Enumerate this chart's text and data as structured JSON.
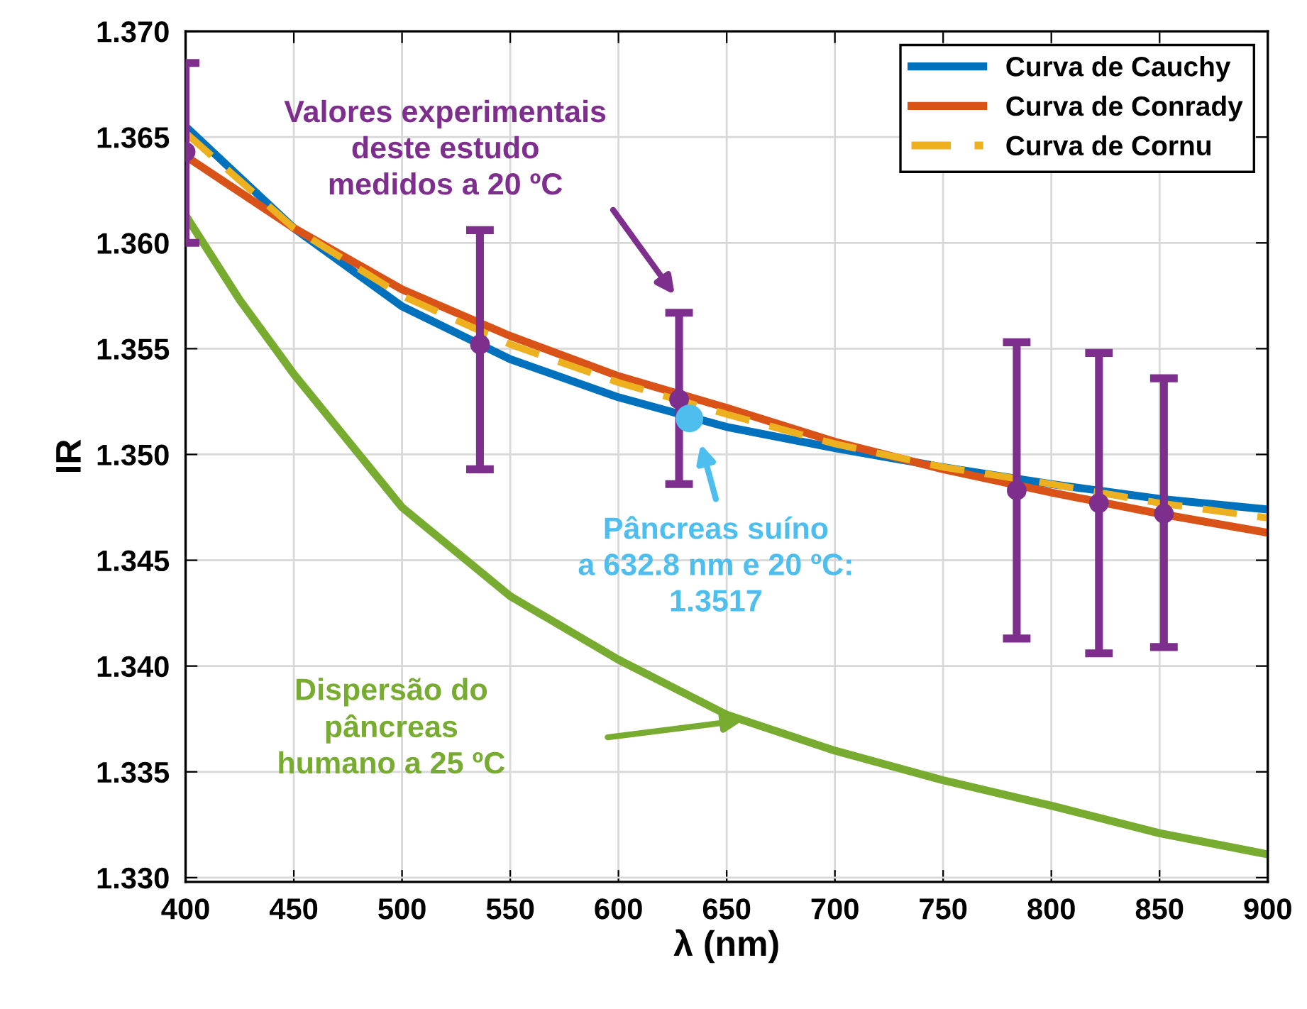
{
  "chart_data": {
    "type": "line",
    "xlabel": "λ (nm)",
    "ylabel": "IR",
    "xlim": [
      400,
      900
    ],
    "ylim": [
      1.3298,
      1.37
    ],
    "xticks": [
      400,
      450,
      500,
      550,
      600,
      650,
      700,
      750,
      800,
      850,
      900
    ],
    "yticks": [
      {
        "value": 1.33,
        "label": "1.330"
      },
      {
        "value": 1.335,
        "label": "1.335"
      },
      {
        "value": 1.34,
        "label": "1.340"
      },
      {
        "value": 1.345,
        "label": "1.345"
      },
      {
        "value": 1.35,
        "label": "1.350"
      },
      {
        "value": 1.355,
        "label": "1.355"
      },
      {
        "value": 1.36,
        "label": "1.360"
      },
      {
        "value": 1.365,
        "label": "1.365"
      },
      {
        "value": 1.37,
        "label": "1.370"
      }
    ],
    "grid": true,
    "legend": "top right",
    "series": [
      {
        "name": "Curva de Cauchy",
        "color": "#0072bd",
        "line_style": "solid",
        "x": [
          400,
          450,
          500,
          550,
          600,
          650,
          700,
          750,
          800,
          850,
          900
        ],
        "values": [
          1.3655,
          1.3607,
          1.357,
          1.3545,
          1.3527,
          1.3513,
          1.3503,
          1.3494,
          1.3486,
          1.3479,
          1.3474
        ]
      },
      {
        "name": "Curva de Conrady",
        "color": "#d95319",
        "line_style": "solid",
        "x": [
          400,
          450,
          500,
          550,
          600,
          650,
          700,
          750,
          800,
          850,
          900
        ],
        "values": [
          1.3641,
          1.3607,
          1.3578,
          1.3556,
          1.3537,
          1.3522,
          1.3506,
          1.3493,
          1.3482,
          1.3472,
          1.3463
        ]
      },
      {
        "name": "Curva de Cornu",
        "color": "#edb120",
        "line_style": "dashed",
        "x": [
          400,
          450,
          500,
          550,
          600,
          650,
          700,
          750,
          800,
          850,
          900
        ],
        "values": [
          1.3652,
          1.3607,
          1.3575,
          1.3552,
          1.3534,
          1.3519,
          1.3505,
          1.3494,
          1.3486,
          1.3477,
          1.347
        ]
      },
      {
        "color": "#77ac30",
        "line_style": "solid",
        "x": [
          400,
          425,
          450,
          500,
          550,
          600,
          650,
          700,
          750,
          800,
          850,
          900
        ],
        "values": [
          1.3613,
          1.3573,
          1.3538,
          1.3475,
          1.3433,
          1.3403,
          1.3377,
          1.336,
          1.3346,
          1.3334,
          1.3321,
          1.3311
        ]
      },
      {
        "type": "scatter",
        "color": "#7e2f8e",
        "marker": "circle",
        "x": [
          400,
          536,
          628,
          784,
          822,
          852
        ],
        "values": [
          1.3643,
          1.3552,
          1.3526,
          1.3483,
          1.3477,
          1.3472
        ],
        "errors": [
          [
            1.36,
            1.3685
          ],
          [
            1.3493,
            1.3606
          ],
          [
            1.3486,
            1.3567
          ],
          [
            1.3413,
            1.3553
          ],
          [
            1.3406,
            1.3548
          ],
          [
            1.3409,
            1.3536
          ]
        ]
      },
      {
        "type": "scatter",
        "color": "#4dbeee",
        "marker": "circle",
        "x": [
          632.8
        ],
        "values": [
          1.3517
        ]
      }
    ],
    "annotations": [
      "Valores experimentais\ndeste estudo\nmedidos a 20 ºC",
      "Pâncreas suíno\na 632.8 nm e 20 ºC:\n1.3517",
      "Dispersão do\npâncreas\nhumano a 25 ºC"
    ]
  }
}
